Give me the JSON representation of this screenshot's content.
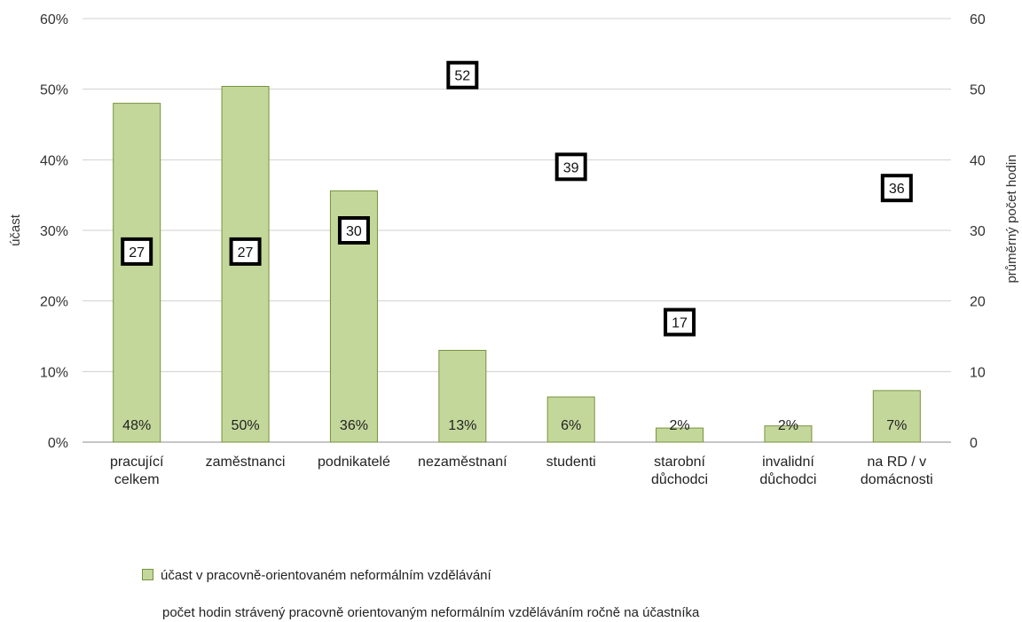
{
  "chart_data": {
    "type": "bar",
    "categories": [
      [
        "pracující",
        "celkem"
      ],
      [
        "zaměstnanci"
      ],
      [
        "podnikatelé"
      ],
      [
        "nezaměstnaní"
      ],
      [
        "studenti"
      ],
      [
        "starobní",
        "důchodci"
      ],
      [
        "invalidní",
        "důchodci"
      ],
      [
        "na RD / v",
        "domácnosti"
      ]
    ],
    "series": [
      {
        "name": "účast v pracovně-orientovaném neformálním vzdělávání",
        "axis": "left",
        "values": [
          48,
          50.4,
          35.6,
          13,
          6.4,
          2,
          2.3,
          7.3
        ],
        "labels": [
          "48%",
          "50%",
          "36%",
          "13%",
          "6%",
          "2%",
          "2%",
          "7%"
        ],
        "color": "#c4d79b",
        "border": "#76923c"
      },
      {
        "name": "počet hodin strávený pracovně orientovaným neformálním vzděláváním ročně na účastníka",
        "axis": "right",
        "marker": "square-box",
        "values": [
          27,
          27,
          30,
          52,
          39,
          17,
          null,
          36
        ],
        "labels": [
          "27",
          "27",
          "30",
          "52",
          "39",
          "17",
          "",
          "36"
        ],
        "color": "#000000"
      }
    ],
    "ylabel": "účast",
    "ylabel_right": "průměrný počet hodin",
    "ylim": [
      0,
      60
    ],
    "ylim_right": [
      0,
      60
    ],
    "yticks": [
      "0%",
      "10%",
      "20%",
      "30%",
      "40%",
      "50%",
      "60%"
    ],
    "yticks_right": [
      "0",
      "10",
      "20",
      "30",
      "40",
      "50",
      "60"
    ],
    "grid": true,
    "legend": "bottom"
  }
}
